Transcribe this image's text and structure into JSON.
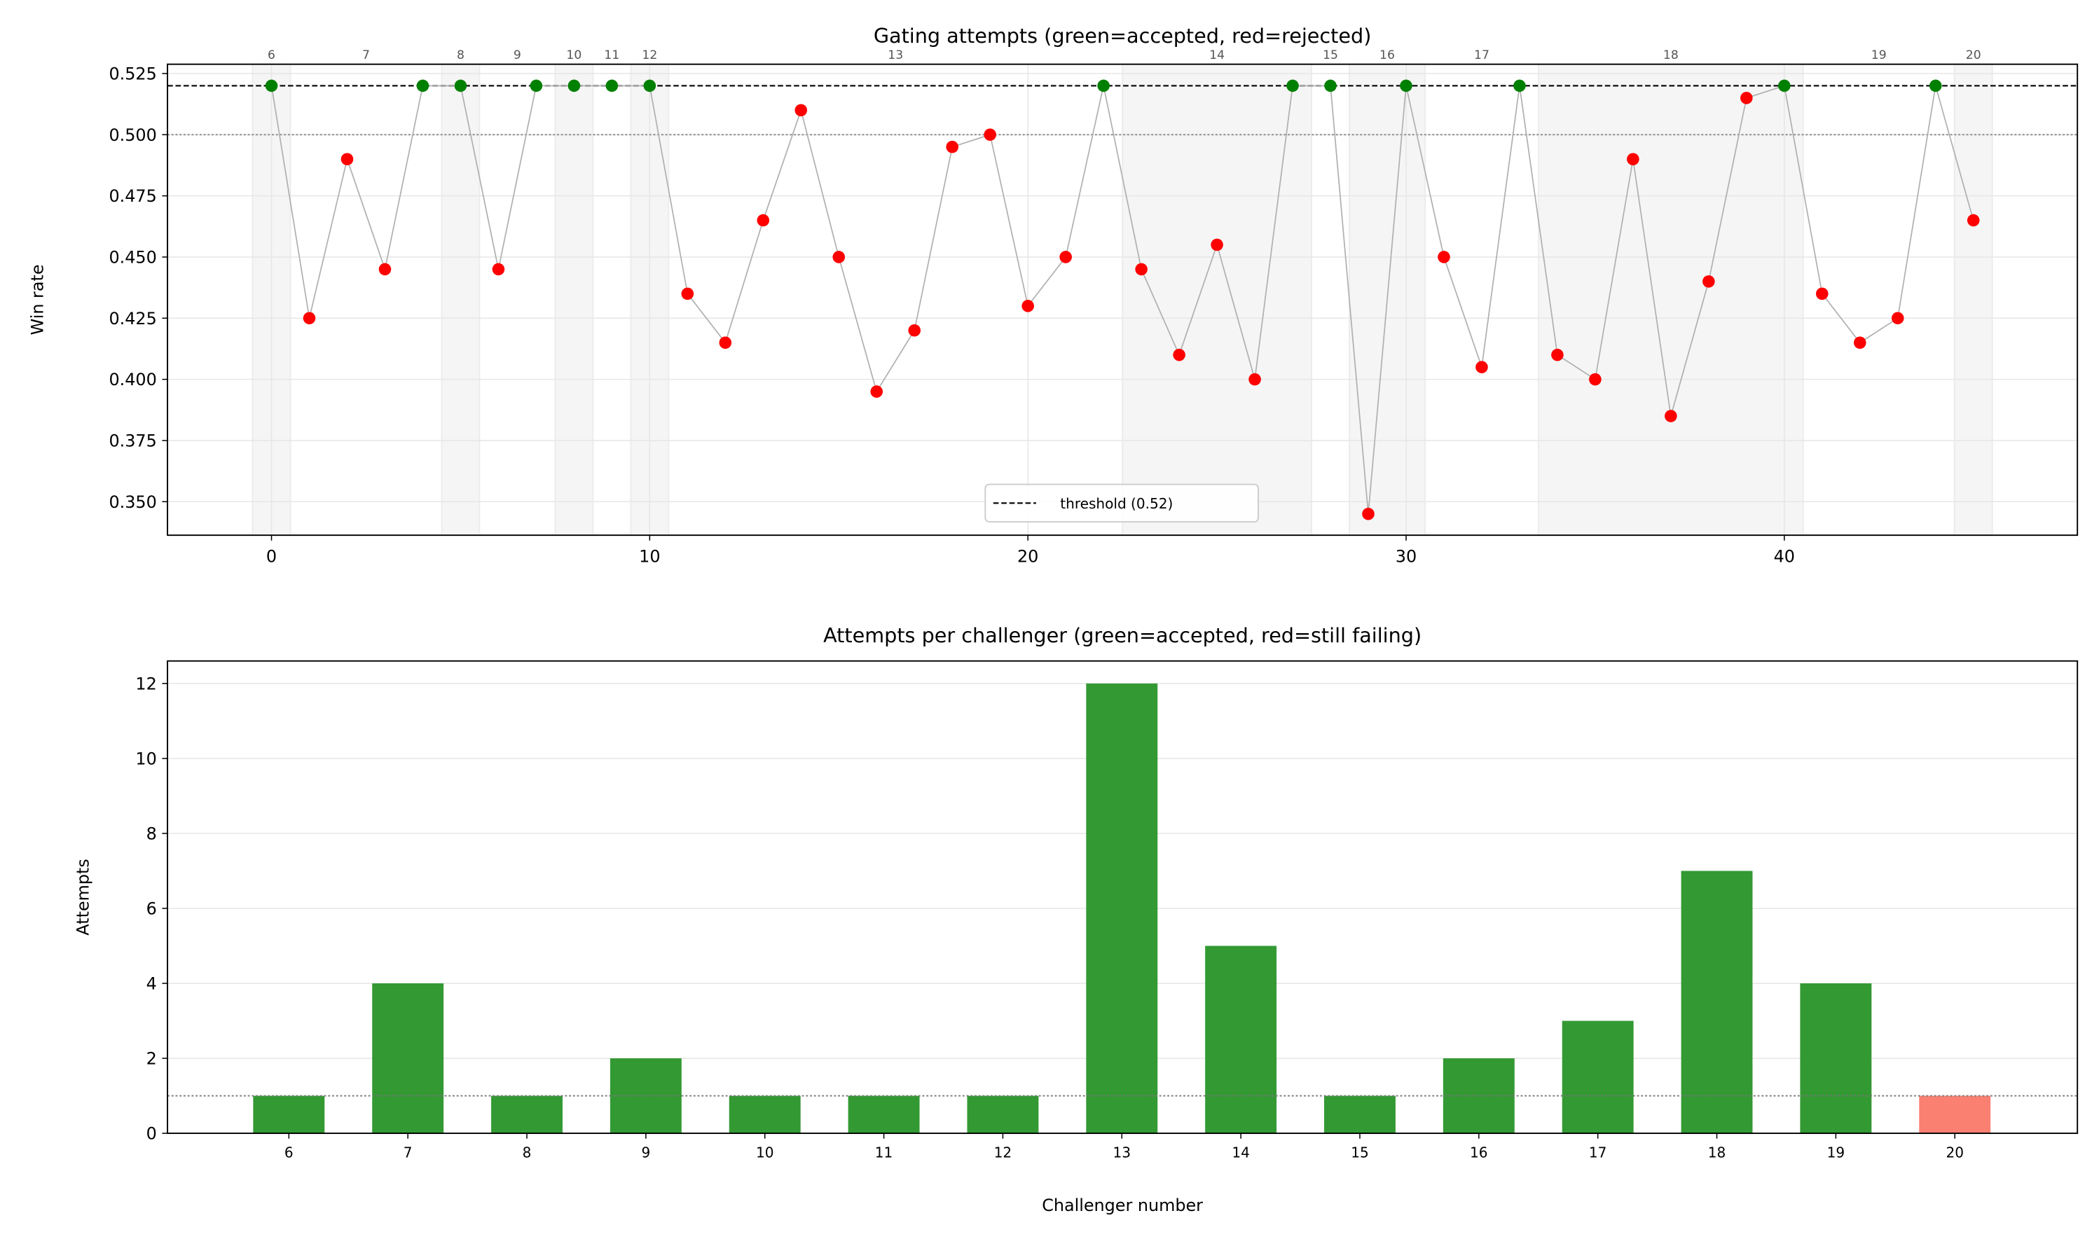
{
  "chart_data": [
    {
      "type": "scatter",
      "title": "Gating attempts (green=accepted, red=rejected)",
      "xlabel": "",
      "ylabel": "Win rate",
      "xlim": [
        -2.75,
        47.75
      ],
      "ylim": [
        0.3363,
        0.5288
      ],
      "xticks": [
        0,
        10,
        20,
        30,
        40
      ],
      "yticks": [
        "0.350",
        "0.375",
        "0.400",
        "0.425",
        "0.450",
        "0.475",
        "0.500",
        "0.525"
      ],
      "grid": true,
      "threshold": 0.52,
      "reference_line": 0.5,
      "legend": {
        "placement": "bottom-center",
        "entries": [
          "threshold (0.52)"
        ]
      },
      "colors": {
        "accepted": "#008000",
        "rejected": "#ff0000",
        "line": "#b0b0b0",
        "shade": "#ebebeb"
      },
      "x": [
        0,
        1,
        2,
        3,
        4,
        5,
        6,
        7,
        8,
        9,
        10,
        11,
        12,
        13,
        14,
        15,
        16,
        17,
        18,
        19,
        20,
        21,
        22,
        23,
        24,
        25,
        26,
        27,
        28,
        29,
        30,
        31,
        32,
        33,
        34,
        35,
        36,
        37,
        38,
        39,
        40,
        41,
        42,
        43,
        44,
        45
      ],
      "y": [
        0.52,
        0.425,
        0.49,
        0.445,
        0.52,
        0.52,
        0.445,
        0.52,
        0.52,
        0.52,
        0.52,
        0.435,
        0.415,
        0.465,
        0.51,
        0.45,
        0.395,
        0.42,
        0.495,
        0.5,
        0.43,
        0.45,
        0.52,
        0.445,
        0.41,
        0.455,
        0.4,
        0.52,
        0.52,
        0.345,
        0.52,
        0.45,
        0.405,
        0.52,
        0.41,
        0.4,
        0.49,
        0.385,
        0.44,
        0.515,
        0.52,
        0.435,
        0.415,
        0.425,
        0.52,
        0.465
      ],
      "accepted": [
        1,
        0,
        0,
        0,
        1,
        1,
        0,
        1,
        1,
        1,
        1,
        0,
        0,
        0,
        0,
        0,
        0,
        0,
        0,
        0,
        0,
        0,
        1,
        0,
        0,
        0,
        0,
        1,
        1,
        0,
        1,
        0,
        0,
        1,
        0,
        0,
        0,
        0,
        0,
        0,
        1,
        0,
        0,
        0,
        1,
        0
      ],
      "challenger_spans": [
        {
          "label": "6",
          "start": 0,
          "end": 0,
          "shaded": true
        },
        {
          "label": "7",
          "start": 1,
          "end": 4,
          "shaded": false
        },
        {
          "label": "8",
          "start": 5,
          "end": 5,
          "shaded": true
        },
        {
          "label": "9",
          "start": 6,
          "end": 7,
          "shaded": false
        },
        {
          "label": "10",
          "start": 8,
          "end": 8,
          "shaded": true
        },
        {
          "label": "11",
          "start": 9,
          "end": 9,
          "shaded": false
        },
        {
          "label": "12",
          "start": 10,
          "end": 10,
          "shaded": true
        },
        {
          "label": "13",
          "start": 11,
          "end": 22,
          "shaded": false
        },
        {
          "label": "14",
          "start": 23,
          "end": 27,
          "shaded": true
        },
        {
          "label": "15",
          "start": 28,
          "end": 28,
          "shaded": false
        },
        {
          "label": "16",
          "start": 29,
          "end": 30,
          "shaded": true
        },
        {
          "label": "17",
          "start": 31,
          "end": 33,
          "shaded": false
        },
        {
          "label": "18",
          "start": 34,
          "end": 40,
          "shaded": true
        },
        {
          "label": "19",
          "start": 41,
          "end": 44,
          "shaded": false
        },
        {
          "label": "20",
          "start": 45,
          "end": 45,
          "shaded": true
        }
      ]
    },
    {
      "type": "bar",
      "title": "Attempts per challenger (green=accepted, red=still failing)",
      "xlabel": "Challenger number",
      "ylabel": "Attempts",
      "ylim": [
        0,
        12.6
      ],
      "yticks": [
        "0",
        "2",
        "4",
        "6",
        "8",
        "10",
        "12"
      ],
      "grid": true,
      "reference_line": 1,
      "categories": [
        "6",
        "7",
        "8",
        "9",
        "10",
        "11",
        "12",
        "13",
        "14",
        "15",
        "16",
        "17",
        "18",
        "19",
        "20"
      ],
      "values": [
        1,
        4,
        1,
        2,
        1,
        1,
        1,
        12,
        5,
        1,
        2,
        3,
        7,
        4,
        1
      ],
      "status": [
        "accepted",
        "accepted",
        "accepted",
        "accepted",
        "accepted",
        "accepted",
        "accepted",
        "accepted",
        "accepted",
        "accepted",
        "accepted",
        "accepted",
        "accepted",
        "accepted",
        "still failing"
      ],
      "colors": {
        "accepted": "#339933",
        "still failing": "#fa8072"
      }
    }
  ]
}
